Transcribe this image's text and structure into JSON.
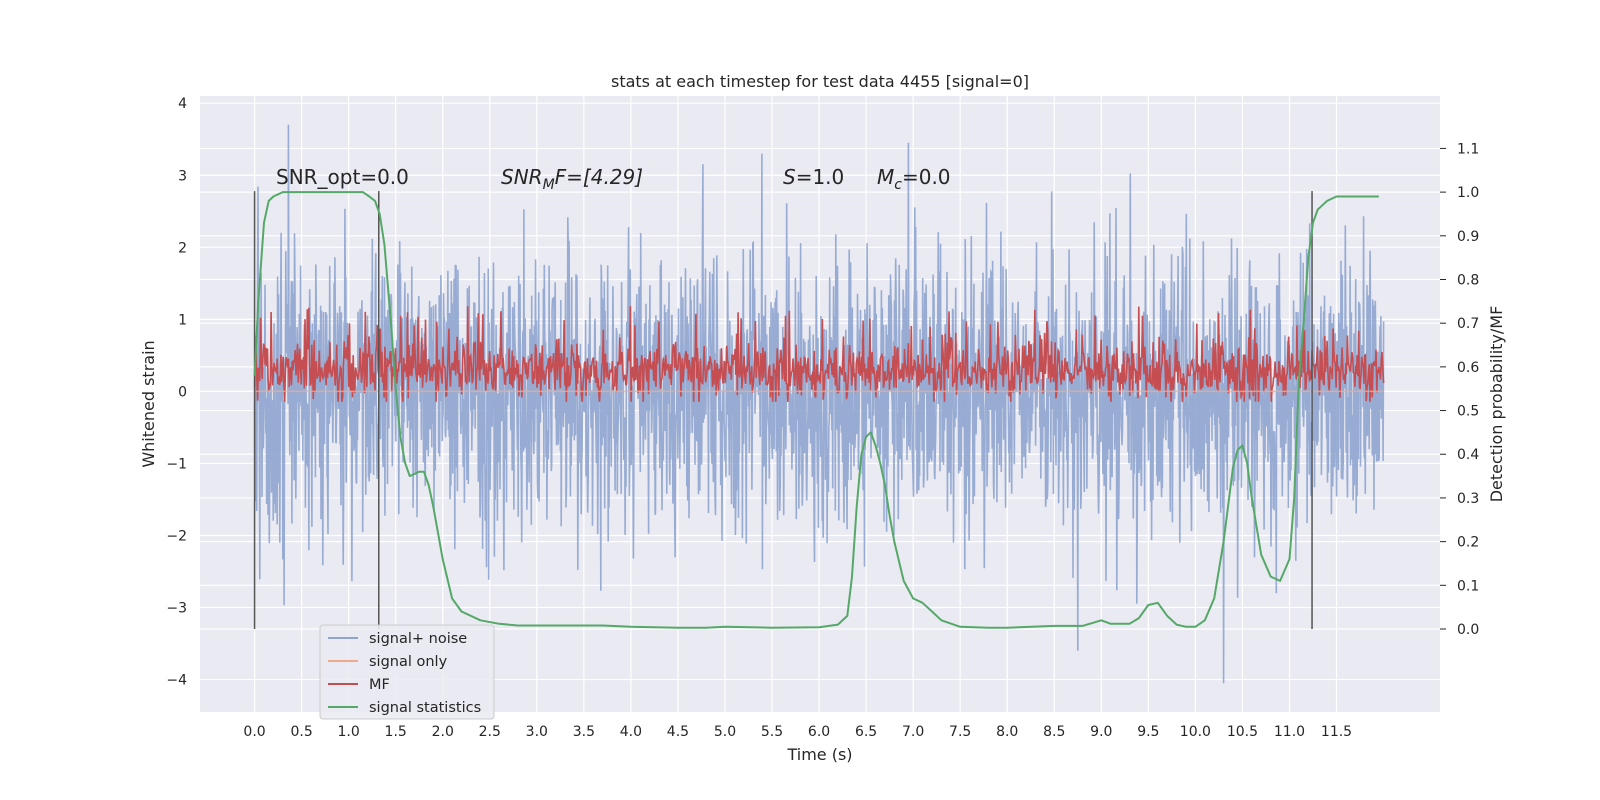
{
  "chart_data": {
    "type": "line",
    "title": "stats at each timestep for test data 4455 [signal=0]",
    "xlabel": "Time (s)",
    "ylabel": "Whitened strain",
    "y2label": "Detection probability/MF",
    "xlim": [
      -0.58,
      12.6
    ],
    "ylim": [
      -4.45,
      4.1
    ],
    "y2lim": [
      -0.19,
      1.22
    ],
    "x_ticks": [
      0.0,
      0.5,
      1.0,
      1.5,
      2.0,
      2.5,
      3.0,
      3.5,
      4.0,
      4.5,
      5.0,
      5.5,
      6.0,
      6.5,
      7.0,
      7.5,
      8.0,
      8.5,
      9.0,
      9.5,
      10.0,
      10.5,
      11.0,
      11.5
    ],
    "x_tick_labels": [
      "0.0",
      "0.5",
      "1.0",
      "1.5",
      "2.0",
      "2.5",
      "3.0",
      "3.5",
      "4.0",
      "4.5",
      "5.0",
      "5.5",
      "6.0",
      "6.5",
      "7.0",
      "7.5",
      "8.0",
      "8.5",
      "9.0",
      "9.5",
      "10.0",
      "10.5",
      "11.0",
      "11.5"
    ],
    "y_ticks": [
      -4,
      -3,
      -2,
      -1,
      0,
      1,
      2,
      3,
      4
    ],
    "y_tick_labels": [
      "−4",
      "−3",
      "−2",
      "−1",
      "0",
      "1",
      "2",
      "3",
      "4"
    ],
    "y2_ticks": [
      0.0,
      0.1,
      0.2,
      0.3,
      0.4,
      0.5,
      0.6,
      0.7,
      0.8,
      0.9,
      1.0,
      1.1
    ],
    "y2_tick_labels": [
      "0.0",
      "0.1",
      "0.2",
      "0.3",
      "0.4",
      "0.5",
      "0.6",
      "0.7",
      "0.8",
      "0.9",
      "1.0",
      "1.1"
    ],
    "grid": true,
    "legend_position": "lower-left",
    "series": [
      {
        "name": "signal+ noise",
        "color": "#8fa5cf",
        "x_range": [
          0.0,
          12.0
        ],
        "typical_range": [
          -1.5,
          1.6
        ],
        "peak_range": [
          -3.3,
          3.7
        ],
        "notable_values": [
          [
            0.36,
            3.7
          ],
          [
            6.95,
            3.45
          ],
          [
            8.75,
            -3.6
          ],
          [
            10.3,
            -4.05
          ]
        ]
      },
      {
        "name": "signal only",
        "color": "#eeaa8c",
        "x_range": [
          0.0,
          12.0
        ],
        "values_constant": 0.0
      },
      {
        "name": "MF",
        "color": "#c44e52",
        "x_range": [
          0.0,
          12.0
        ],
        "axis": "secondary",
        "typical_range": [
          0.53,
          0.65
        ],
        "peak_range": [
          0.52,
          0.74
        ]
      },
      {
        "name": "signal statistics",
        "color": "#55a868",
        "axis": "secondary",
        "x": [
          0.0,
          0.04,
          0.1,
          0.15,
          0.2,
          0.3,
          0.5,
          0.8,
          1.0,
          1.15,
          1.22,
          1.28,
          1.33,
          1.38,
          1.45,
          1.5,
          1.55,
          1.6,
          1.65,
          1.7,
          1.75,
          1.8,
          1.85,
          1.9,
          2.0,
          2.1,
          2.2,
          2.4,
          2.6,
          2.8,
          3.0,
          3.3,
          3.7,
          4.0,
          4.5,
          4.8,
          5.0,
          5.5,
          6.0,
          6.2,
          6.3,
          6.35,
          6.4,
          6.45,
          6.5,
          6.55,
          6.6,
          6.65,
          6.7,
          6.75,
          6.8,
          6.9,
          7.0,
          7.1,
          7.2,
          7.3,
          7.5,
          7.8,
          8.0,
          8.5,
          8.8,
          9.0,
          9.1,
          9.3,
          9.4,
          9.5,
          9.6,
          9.7,
          9.8,
          9.9,
          10.0,
          10.1,
          10.2,
          10.3,
          10.4,
          10.45,
          10.5,
          10.55,
          10.6,
          10.7,
          10.8,
          10.9,
          11.0,
          11.05,
          11.1,
          11.15,
          11.2,
          11.25,
          11.3,
          11.35,
          11.4,
          11.5,
          11.6,
          11.7,
          11.8,
          11.9,
          11.95
        ],
        "y": [
          0.58,
          0.75,
          0.93,
          0.98,
          0.99,
          1.0,
          1.0,
          1.0,
          1.0,
          1.0,
          0.99,
          0.98,
          0.95,
          0.88,
          0.7,
          0.55,
          0.44,
          0.38,
          0.35,
          0.355,
          0.36,
          0.36,
          0.33,
          0.28,
          0.16,
          0.07,
          0.04,
          0.02,
          0.012,
          0.008,
          0.008,
          0.008,
          0.008,
          0.005,
          0.003,
          0.003,
          0.005,
          0.003,
          0.004,
          0.01,
          0.03,
          0.12,
          0.28,
          0.4,
          0.44,
          0.45,
          0.42,
          0.38,
          0.33,
          0.26,
          0.2,
          0.11,
          0.07,
          0.06,
          0.04,
          0.02,
          0.005,
          0.003,
          0.003,
          0.007,
          0.007,
          0.02,
          0.012,
          0.012,
          0.025,
          0.055,
          0.06,
          0.03,
          0.01,
          0.005,
          0.005,
          0.02,
          0.07,
          0.2,
          0.37,
          0.41,
          0.42,
          0.38,
          0.3,
          0.17,
          0.12,
          0.11,
          0.16,
          0.3,
          0.57,
          0.7,
          0.85,
          0.93,
          0.96,
          0.97,
          0.98,
          0.99,
          0.99,
          0.99,
          0.99,
          0.99,
          0.99
        ]
      }
    ],
    "vlines_x": [
      0.0,
      1.32,
      11.24
    ],
    "annotations": [
      {
        "text": "SNR_opt=0.0",
        "x": 0.2,
        "y": 2.85
      },
      {
        "text_html": "SNR<sub>M</sub>F=[4.29]",
        "x": 2.6,
        "y": 2.85
      },
      {
        "text_html": "S=1.0",
        "x": 5.6,
        "y": 2.85
      },
      {
        "text_html": "M<sub>c</sub>=0.0",
        "x": 6.6,
        "y": 2.85
      }
    ],
    "annotation_parts": {
      "snr_mf_a": "SNR",
      "snr_mf_sub": "M",
      "snr_mf_b": "F=[4.29]",
      "s_var": "S",
      "s_val": "=1.0",
      "mc_var": "M",
      "mc_sub": "c",
      "mc_val": "=0.0"
    }
  }
}
